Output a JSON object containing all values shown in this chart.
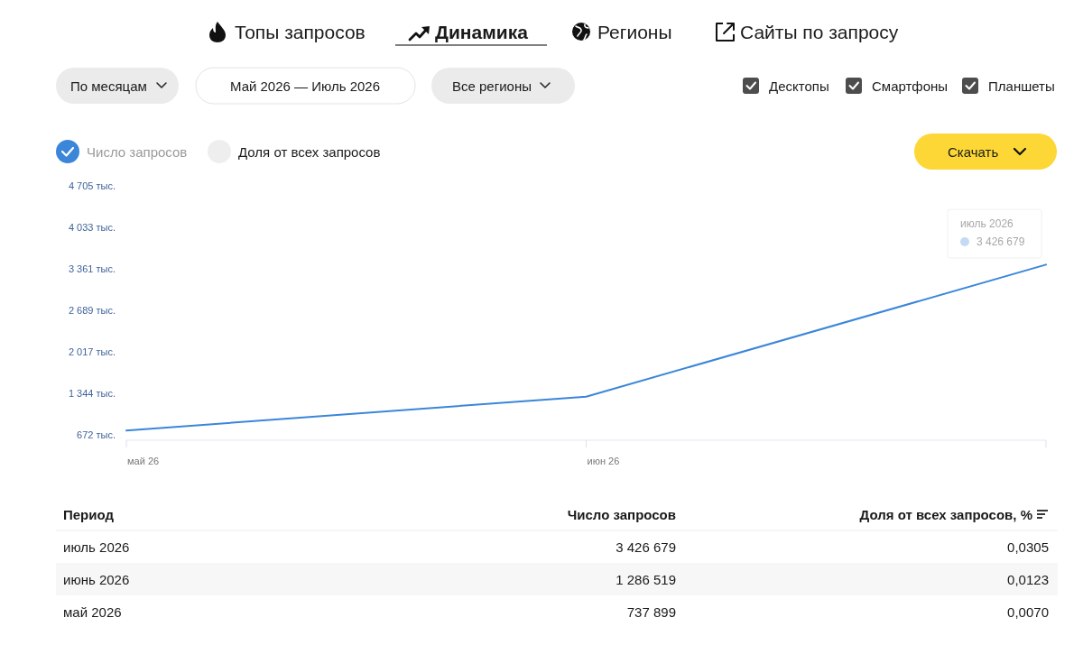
{
  "chart_data": {
    "type": "line",
    "categories": [
      "май 26",
      "июн 26",
      null
    ],
    "series": [
      {
        "name": "Число запросов",
        "color": "#3b86d9",
        "values": [
          737.899,
          1286.519,
          3426.679
        ]
      }
    ],
    "ylim": [
      580,
      4705
    ],
    "yticks": [
      {
        "value": 672,
        "label": "672 тыс."
      },
      {
        "value": 1344,
        "label": "1 344 тыс."
      },
      {
        "value": 2017,
        "label": "2 017 тыс."
      },
      {
        "value": 2689,
        "label": "2 689 тыс."
      },
      {
        "value": 3361,
        "label": "3 361 тыс."
      },
      {
        "value": 4033,
        "label": "4 033 тыс."
      },
      {
        "value": 4705,
        "label": "4 705 тыс."
      }
    ],
    "legend": "top left",
    "annotations": [
      "Топы запросов",
      "Динамика",
      "Регионы",
      "Сайты по запросу",
      "По месяцам",
      "Май 2026 — Июль 2026",
      "Все регионы",
      "Десктопы",
      "Смартфоны",
      "Планшеты",
      "Доля от всех запросов",
      "Скачать",
      "июль 2026",
      "3 426 679",
      "Период",
      "Доля от всех запросов, %",
      "июль 2026",
      "июнь 2026",
      "май 2026",
      "3 426 679",
      "1 286 519",
      "737 899",
      "0,0305",
      "0,0123",
      "0,0070"
    ]
  }
}
